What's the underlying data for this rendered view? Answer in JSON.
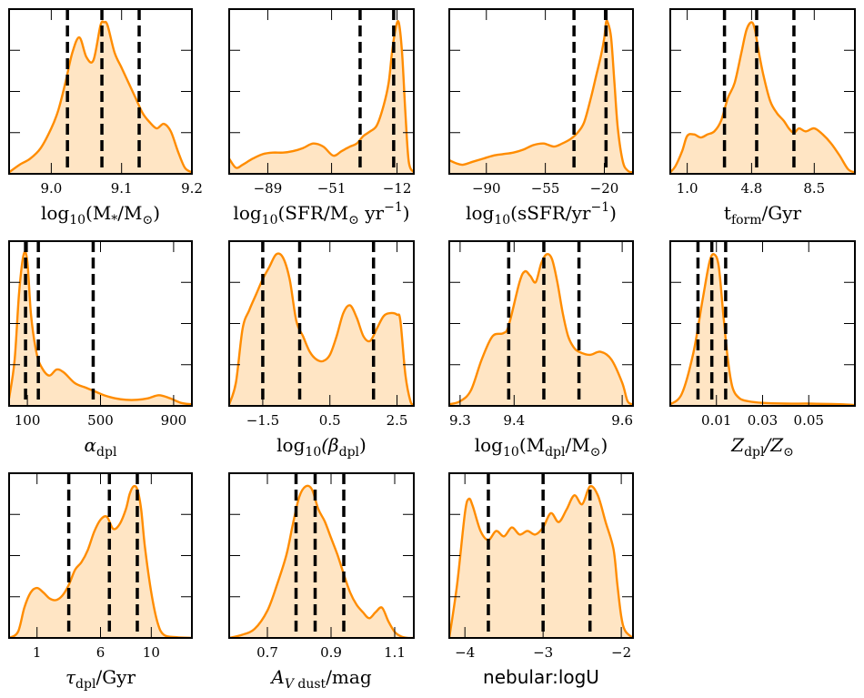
{
  "colors": {
    "line": "#ff8c00",
    "fill": "#ffe5c4",
    "quantile": "#000000"
  },
  "chart_data": [
    {
      "type": "area",
      "xlabel": "log10(M*/M☉)",
      "xlim": [
        8.94,
        9.2
      ],
      "ticks": [
        9.0,
        9.1,
        9.2
      ],
      "tick_labels": [
        "9.0",
        "9.1",
        "9.2"
      ],
      "quantiles": [
        9.023,
        9.072,
        9.125
      ],
      "x": [
        8.94,
        8.955,
        8.97,
        8.985,
        9.0,
        9.01,
        9.02,
        9.03,
        9.04,
        9.05,
        9.06,
        9.07,
        9.075,
        9.08,
        9.09,
        9.1,
        9.11,
        9.12,
        9.13,
        9.14,
        9.15,
        9.16,
        9.17,
        9.18,
        9.19,
        9.2
      ],
      "y": [
        0.01,
        0.06,
        0.1,
        0.17,
        0.3,
        0.42,
        0.6,
        0.8,
        0.9,
        0.77,
        0.75,
        0.98,
        1.0,
        0.98,
        0.8,
        0.7,
        0.6,
        0.5,
        0.4,
        0.34,
        0.3,
        0.33,
        0.28,
        0.15,
        0.04,
        0.01
      ]
    },
    {
      "type": "area",
      "xlabel": "log10(SFR/M☉ yr−1)",
      "xlim": [
        -112,
        -2
      ],
      "ticks": [
        -89,
        -51,
        -12
      ],
      "tick_labels": [
        "−89",
        "−51",
        "−12"
      ],
      "quantiles": [
        -34,
        -14
      ],
      "x": [
        -112,
        -108,
        -104,
        -98,
        -92,
        -86,
        -80,
        -74,
        -68,
        -62,
        -56,
        -50,
        -45,
        -40,
        -36,
        -32,
        -28,
        -24,
        -20,
        -17,
        -15,
        -13,
        -11,
        -9,
        -7,
        -5,
        -2
      ],
      "y": [
        0.1,
        0.04,
        0.06,
        0.1,
        0.13,
        0.14,
        0.14,
        0.15,
        0.17,
        0.2,
        0.18,
        0.12,
        0.15,
        0.18,
        0.2,
        0.25,
        0.28,
        0.32,
        0.45,
        0.6,
        0.8,
        0.95,
        1.0,
        0.8,
        0.4,
        0.08,
        0.01
      ]
    },
    {
      "type": "area",
      "xlabel": "log10(sSFR/yr−1)",
      "xlim": [
        -112,
        -3
      ],
      "ticks": [
        -90,
        -55,
        -20
      ],
      "tick_labels": [
        "−90",
        "−55",
        "−20"
      ],
      "quantiles": [
        -38,
        -19
      ],
      "x": [
        -112,
        -108,
        -104,
        -98,
        -92,
        -86,
        -80,
        -74,
        -68,
        -62,
        -56,
        -50,
        -45,
        -40,
        -36,
        -32,
        -28,
        -25,
        -22,
        -20,
        -19,
        -18,
        -16,
        -14,
        -12,
        -9,
        -6,
        -3
      ],
      "y": [
        0.09,
        0.07,
        0.06,
        0.08,
        0.1,
        0.12,
        0.13,
        0.14,
        0.16,
        0.19,
        0.2,
        0.18,
        0.2,
        0.23,
        0.27,
        0.34,
        0.5,
        0.64,
        0.78,
        0.9,
        1.0,
        1.0,
        0.9,
        0.6,
        0.3,
        0.08,
        0.02,
        0.01
      ]
    },
    {
      "type": "area",
      "xlabel": "tform/Gyr",
      "xlim": [
        0.0,
        10.9
      ],
      "ticks": [
        1.0,
        4.8,
        8.5
      ],
      "tick_labels": [
        "1.0",
        "4.8",
        "8.5"
      ],
      "quantiles": [
        3.2,
        5.1,
        7.3
      ],
      "x": [
        0.0,
        0.3,
        0.7,
        1.0,
        1.4,
        1.8,
        2.2,
        2.6,
        3.0,
        3.4,
        3.8,
        4.2,
        4.5,
        4.8,
        5.0,
        5.2,
        5.5,
        5.9,
        6.3,
        6.7,
        7.0,
        7.3,
        7.6,
        8.0,
        8.5,
        9.0,
        9.5,
        10.0,
        10.5,
        10.9
      ],
      "y": [
        0.01,
        0.05,
        0.15,
        0.25,
        0.26,
        0.24,
        0.26,
        0.28,
        0.35,
        0.5,
        0.6,
        0.8,
        0.95,
        1.0,
        0.95,
        0.82,
        0.65,
        0.48,
        0.4,
        0.35,
        0.3,
        0.27,
        0.3,
        0.28,
        0.3,
        0.26,
        0.2,
        0.12,
        0.03,
        0.01
      ]
    },
    {
      "type": "area",
      "xlabel": "αdpl",
      "xlim": [
        0,
        1000
      ],
      "ticks": [
        100,
        500,
        900
      ],
      "tick_labels": [
        "100",
        "500",
        "900"
      ],
      "quantiles": [
        90,
        160,
        460
      ],
      "x": [
        0,
        30,
        55,
        80,
        100,
        120,
        150,
        180,
        220,
        260,
        300,
        360,
        420,
        480,
        520,
        580,
        640,
        700,
        760,
        820,
        880,
        940,
        1000
      ],
      "y": [
        0.05,
        0.3,
        0.75,
        1.0,
        0.95,
        0.6,
        0.35,
        0.25,
        0.2,
        0.24,
        0.22,
        0.15,
        0.12,
        0.09,
        0.07,
        0.05,
        0.04,
        0.04,
        0.05,
        0.07,
        0.05,
        0.02,
        0.01
      ]
    },
    {
      "type": "area",
      "xlabel": "log10(βdpl)",
      "xlim": [
        -2.5,
        3.0
      ],
      "ticks": [
        -1.5,
        0.5,
        2.5
      ],
      "tick_labels": [
        "−1.5",
        "0.5",
        "2.5"
      ],
      "quantiles": [
        -1.5,
        -0.4,
        1.8
      ],
      "x": [
        -2.5,
        -2.3,
        -2.1,
        -1.9,
        -1.7,
        -1.5,
        -1.3,
        -1.1,
        -0.9,
        -0.7,
        -0.5,
        -0.3,
        -0.1,
        0.1,
        0.3,
        0.5,
        0.7,
        0.9,
        1.1,
        1.3,
        1.5,
        1.7,
        1.9,
        2.1,
        2.3,
        2.5,
        2.6,
        2.75,
        2.9,
        3.0
      ],
      "y": [
        0.01,
        0.15,
        0.5,
        0.62,
        0.72,
        0.82,
        0.9,
        0.98,
        0.96,
        0.82,
        0.55,
        0.45,
        0.35,
        0.3,
        0.29,
        0.33,
        0.45,
        0.6,
        0.65,
        0.57,
        0.45,
        0.42,
        0.5,
        0.58,
        0.6,
        0.59,
        0.55,
        0.2,
        0.03,
        0.01
      ]
    },
    {
      "type": "area",
      "xlabel": "log10(Mdpl/M☉)",
      "xlim": [
        9.28,
        9.62
      ],
      "ticks": [
        9.3,
        9.4,
        9.6
      ],
      "tick_labels": [
        "9.3",
        "9.4",
        "9.6"
      ],
      "quantiles": [
        9.39,
        9.455,
        9.52
      ],
      "x": [
        9.28,
        9.3,
        9.32,
        9.34,
        9.36,
        9.38,
        9.39,
        9.41,
        9.42,
        9.43,
        9.44,
        9.45,
        9.46,
        9.47,
        9.48,
        9.49,
        9.5,
        9.51,
        9.52,
        9.54,
        9.56,
        9.58,
        9.6,
        9.61,
        9.62
      ],
      "y": [
        0.01,
        0.03,
        0.1,
        0.3,
        0.45,
        0.47,
        0.52,
        0.8,
        0.87,
        0.84,
        0.8,
        0.92,
        0.98,
        0.95,
        0.8,
        0.6,
        0.45,
        0.38,
        0.35,
        0.33,
        0.35,
        0.3,
        0.15,
        0.03,
        0.01
      ]
    },
    {
      "type": "area",
      "xlabel": "Zdpl/Z☉",
      "xlim": [
        -0.01,
        0.07
      ],
      "ticks": [
        0.01,
        0.03,
        0.05
      ],
      "tick_labels": [
        "0.01",
        "0.03",
        "0.05"
      ],
      "quantiles": [
        0.002,
        0.008,
        0.014
      ],
      "x": [
        -0.01,
        -0.005,
        0.0,
        0.004,
        0.007,
        0.009,
        0.011,
        0.013,
        0.015,
        0.017,
        0.02,
        0.024,
        0.03,
        0.04,
        0.05,
        0.06,
        0.065,
        0.07
      ],
      "y": [
        0.01,
        0.08,
        0.35,
        0.7,
        0.95,
        1.0,
        0.92,
        0.6,
        0.3,
        0.12,
        0.05,
        0.03,
        0.02,
        0.015,
        0.015,
        0.012,
        0.01,
        0.005
      ]
    },
    {
      "type": "area",
      "xlabel": "τdpl/Gyr",
      "xlim": [
        -1.2,
        13.2
      ],
      "ticks": [
        1,
        6,
        10
      ],
      "tick_labels": [
        "1",
        "6",
        "10"
      ],
      "quantiles": [
        3.5,
        6.7,
        8.9
      ],
      "x": [
        -1.2,
        -0.5,
        0.0,
        0.5,
        1.0,
        1.5,
        2.0,
        2.5,
        3.0,
        3.5,
        4.0,
        4.5,
        5.0,
        5.5,
        6.0,
        6.5,
        7.0,
        7.5,
        8.0,
        8.3,
        8.6,
        8.9,
        9.2,
        9.5,
        10.0,
        10.5,
        11.0,
        12.0,
        13.2
      ],
      "y": [
        0.0,
        0.04,
        0.2,
        0.3,
        0.33,
        0.3,
        0.26,
        0.25,
        0.28,
        0.35,
        0.45,
        0.5,
        0.58,
        0.7,
        0.78,
        0.8,
        0.72,
        0.75,
        0.85,
        0.95,
        1.0,
        0.98,
        0.85,
        0.6,
        0.3,
        0.1,
        0.02,
        0.005,
        0.0
      ]
    },
    {
      "type": "area",
      "xlabel": "AV dust/mag",
      "xlim": [
        0.58,
        1.16
      ],
      "ticks": [
        0.7,
        0.9,
        1.1
      ],
      "tick_labels": [
        "0.7",
        "0.9",
        "1.1"
      ],
      "quantiles": [
        0.79,
        0.85,
        0.94
      ],
      "x": [
        0.58,
        0.62,
        0.66,
        0.7,
        0.73,
        0.76,
        0.78,
        0.8,
        0.82,
        0.84,
        0.86,
        0.88,
        0.9,
        0.92,
        0.94,
        0.96,
        0.98,
        1.0,
        1.02,
        1.04,
        1.06,
        1.08,
        1.1,
        1.12,
        1.14,
        1.16
      ],
      "y": [
        0.0,
        0.02,
        0.06,
        0.18,
        0.35,
        0.55,
        0.75,
        0.93,
        1.0,
        0.98,
        0.85,
        0.77,
        0.66,
        0.55,
        0.42,
        0.3,
        0.22,
        0.17,
        0.13,
        0.17,
        0.2,
        0.11,
        0.04,
        0.01,
        0.0,
        0.0
      ]
    },
    {
      "type": "area",
      "xlabel": "nebular:logU",
      "xlim": [
        -4.2,
        -1.85
      ],
      "ticks": [
        -4,
        -3,
        -2
      ],
      "tick_labels": [
        "−4",
        "−3",
        "−2"
      ],
      "quantiles": [
        -3.7,
        -3.0,
        -2.4
      ],
      "x": [
        -4.2,
        -4.1,
        -4.0,
        -3.95,
        -3.9,
        -3.8,
        -3.7,
        -3.6,
        -3.5,
        -3.4,
        -3.3,
        -3.2,
        -3.1,
        -3.0,
        -2.9,
        -2.8,
        -2.7,
        -2.6,
        -2.5,
        -2.4,
        -2.3,
        -2.2,
        -2.1,
        -2.05,
        -2.0,
        -1.95,
        -1.85
      ],
      "y": [
        0.0,
        0.3,
        0.7,
        0.78,
        0.74,
        0.6,
        0.55,
        0.6,
        0.57,
        0.62,
        0.58,
        0.6,
        0.58,
        0.62,
        0.7,
        0.65,
        0.72,
        0.8,
        0.75,
        0.85,
        0.8,
        0.65,
        0.5,
        0.3,
        0.12,
        0.04,
        0.0
      ]
    }
  ]
}
